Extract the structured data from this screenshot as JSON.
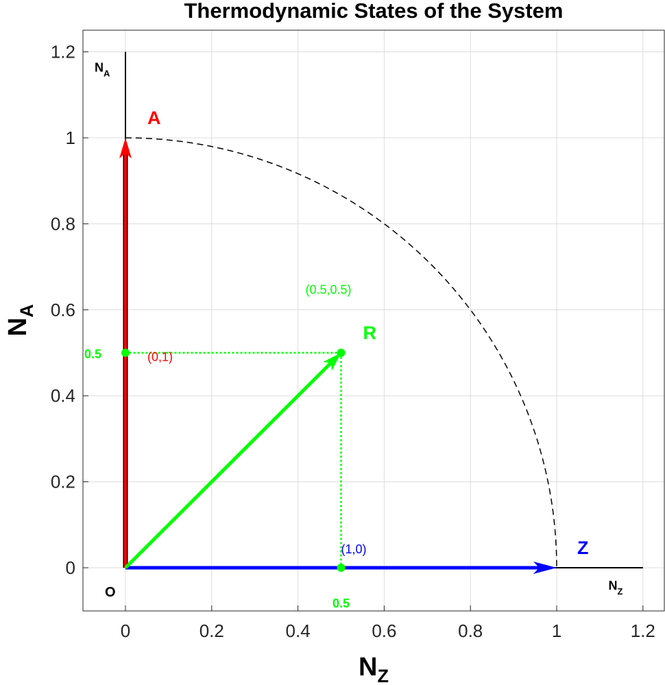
{
  "chart_data": {
    "type": "line",
    "title": "Thermodynamic States of the System",
    "xlabel": {
      "main": "N",
      "sub": "Z"
    },
    "ylabel": {
      "main": "N",
      "sub": "A"
    },
    "xlim": [
      -0.1,
      1.25
    ],
    "ylim": [
      -0.1,
      1.25
    ],
    "xticks": [
      0,
      0.2,
      0.4,
      0.6,
      0.8,
      1,
      1.2
    ],
    "yticks": [
      0,
      0.2,
      0.4,
      0.6,
      0.8,
      1,
      1.2
    ],
    "xtick_labels": [
      "0",
      "0.2",
      "0.4",
      "0.6",
      "0.8",
      "1",
      "1.2"
    ],
    "ytick_labels": [
      "0",
      "0.2",
      "0.4",
      "0.6",
      "0.8",
      "1",
      "1.2"
    ],
    "grid": true,
    "vectors": [
      {
        "name": "A",
        "from": [
          0,
          0
        ],
        "to": [
          0,
          1
        ],
        "color": "#ff0000",
        "label": "A"
      },
      {
        "name": "Z",
        "from": [
          0,
          0
        ],
        "to": [
          1,
          0
        ],
        "color": "#0000ff",
        "label": "Z"
      },
      {
        "name": "R",
        "from": [
          0,
          0
        ],
        "to": [
          0.5,
          0.5
        ],
        "color": "#00ff00",
        "label": "R"
      }
    ],
    "arc": {
      "center": [
        0,
        0
      ],
      "radius": 1,
      "start_deg": 0,
      "end_deg": 90,
      "style": "dashed",
      "color": "#000000"
    },
    "axis_lines": [
      {
        "from": [
          0,
          0
        ],
        "to": [
          1.2,
          0
        ],
        "label": {
          "main": "N",
          "sub": "Z"
        }
      },
      {
        "from": [
          0,
          0
        ],
        "to": [
          0,
          1.2
        ],
        "label": {
          "main": "N",
          "sub": "A"
        }
      }
    ],
    "origin_label": "O",
    "projections": [
      {
        "from": [
          0.5,
          0.5
        ],
        "to": [
          0,
          0.5
        ],
        "color": "#00ff00",
        "style": "dotted"
      },
      {
        "from": [
          0.5,
          0.5
        ],
        "to": [
          0.5,
          0
        ],
        "color": "#00ff00",
        "style": "dotted"
      }
    ],
    "points": [
      {
        "x": 0.5,
        "y": 0,
        "color": "#00ff00"
      },
      {
        "x": 0,
        "y": 0.5,
        "color": "#00ff00"
      },
      {
        "x": 0.5,
        "y": 0.5,
        "color": "#00ff00"
      }
    ],
    "annotations": [
      {
        "text": "(0.5,0.5)",
        "x": 0.5,
        "y": 0.5,
        "color": "#00ff00"
      },
      {
        "text": "(0,1)",
        "x": 0,
        "y": 0.5,
        "color": "#ff0000"
      },
      {
        "text": "(1,0)",
        "x": 0.5,
        "y": 0,
        "color": "#0000ff"
      },
      {
        "text": "0.5",
        "x": 0,
        "y": 0.5,
        "color": "#00ff00"
      },
      {
        "text": "0.5",
        "x": 0.5,
        "y": 0,
        "color": "#00ff00"
      }
    ]
  }
}
